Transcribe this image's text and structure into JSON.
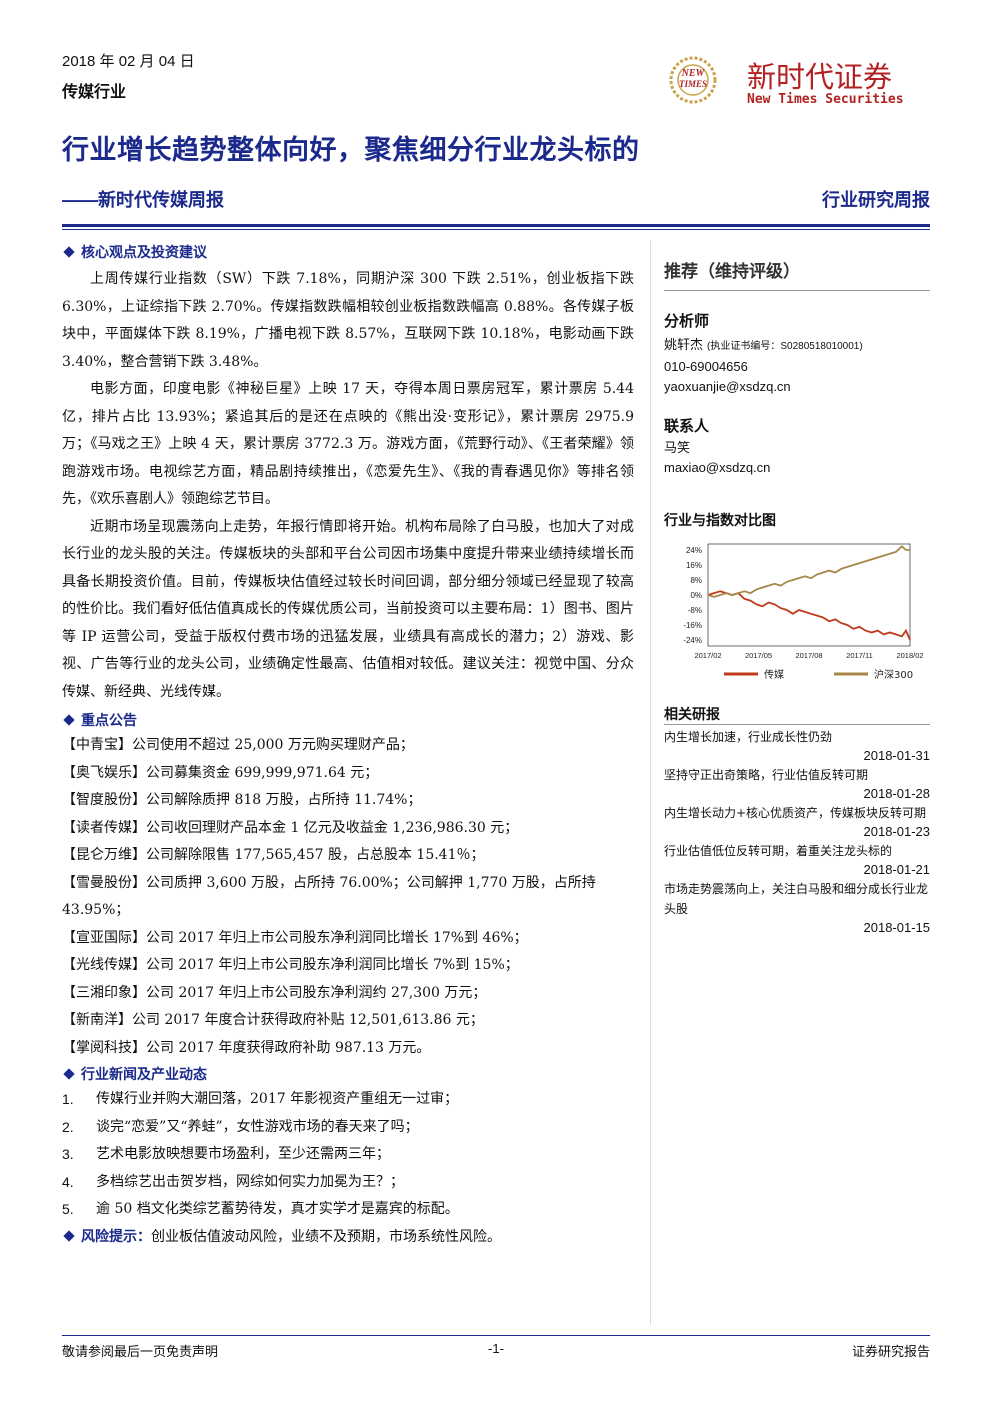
{
  "header": {
    "date": "2018 年 02 月 04 日",
    "sector": "传媒行业",
    "logo_cn": "新时代证券",
    "logo_en": "New Times Securities",
    "logo_mark_top": "NEW",
    "logo_mark_bottom": "TIMES",
    "title": "行业增长趋势整体向好，聚焦细分行业龙头标的",
    "subtitle": "——新时代传媒周报",
    "doc_type": "行业研究周报",
    "brand_color": "#1b2a8c"
  },
  "core": {
    "heading": "核心观点及投资建议",
    "paragraphs": [
      "上周传媒行业指数（SW）下跌 7.18%，同期沪深 300 下跌 2.51%，创业板指下跌 6.30%，上证综指下跌 2.70%。传媒指数跌幅相较创业板指数跌幅高 0.88%。各传媒子板块中，平面媒体下跌 8.19%，广播电视下跌 8.57%，互联网下跌 10.18%，电影动画下跌 3.40%，整合营销下跌 3.48%。",
      "电影方面，印度电影《神秘巨星》上映 17 天，夺得本周日票房冠军，累计票房 5.44 亿，排片占比 13.93%；紧追其后的是还在点映的《熊出没·变形记》，累计票房 2975.9 万；《马戏之王》上映 4 天，累计票房 3772.3 万。游戏方面，《荒野行动》、《王者荣耀》领跑游戏市场。电视综艺方面，精品剧持续推出，《恋爱先生》、《我的青春遇见你》等排名领先，《欢乐喜剧人》领跑综艺节目。",
      "近期市场呈现震荡向上走势，年报行情即将开始。机构布局除了白马股，也加大了对成长行业的龙头股的关注。传媒板块的头部和平台公司因市场集中度提升带来业绩持续增长而具备长期投资价值。目前，传媒板块估值经过较长时间回调，部分细分领域已经显现了较高的性价比。我们看好低估值真成长的传媒优质公司，当前投资可以主要布局：1）图书、图片等 IP 运营公司，受益于版权付费市场的迅猛发展，业绩具有高成长的潜力；2）游戏、影视、广告等行业的龙头公司，业绩确定性最高、估值相对较低。建议关注：视觉中国、分众传媒、新经典、光线传媒。"
    ]
  },
  "announcements": {
    "heading": "重点公告",
    "items": [
      "【中青宝】公司使用不超过 25,000 万元购买理财产品；",
      "【奥飞娱乐】公司募集资金 699,999,971.64 元；",
      "【智度股份】公司解除质押 818 万股，占所持 11.74%；",
      "【读者传媒】公司收回理财产品本金 1 亿元及收益金 1,236,986.30 元；",
      "【昆仑万维】公司解除限售 177,565,457 股，占总股本 15.41％；",
      "【雪曼股份】公司质押 3,600 万股，占所持 76.00%；公司解押 1,770 万股，占所持 43.95%；",
      "【宣亚国际】公司 2017 年归上市公司股东净利润同比增长 17%到 46%；",
      "【光线传媒】公司 2017 年归上市公司股东净利润同比增长 7%到 15%；",
      "【三湘印象】公司 2017 年归上市公司股东净利润约 27,300 万元；",
      "【新南洋】公司 2017 年度合计获得政府补贴 12,501,613.86 元；",
      "【掌阅科技】公司 2017 年度获得政府补助 987.13 万元。"
    ]
  },
  "news": {
    "heading": "行业新闻及产业动态",
    "items": [
      {
        "num": "1.",
        "text": "传媒行业并购大潮回落，2017 年影视资产重组无一过审；"
      },
      {
        "num": "2.",
        "text": "谈完“恋爱”又“养蛙”，女性游戏市场的春天来了吗；"
      },
      {
        "num": "3.",
        "text": "艺术电影放映想要市场盈利，至少还需两三年；"
      },
      {
        "num": "4.",
        "text": "多档综艺出击贺岁档，网综如何实力加冕为王？；"
      },
      {
        "num": "5.",
        "text": "逾 50 档文化类综艺蓄势待发，真才实学才是嘉宾的标配。"
      }
    ]
  },
  "risk": {
    "label": "风险提示：",
    "text": "创业板估值波动风险，业绩不及预期，市场系统性风险。"
  },
  "sidebar": {
    "rating": "推荐（维持评级）",
    "analyst_label": "分析师",
    "analyst_name": "姚轩杰",
    "analyst_cert": "(执业证书编号：S0280518010001)",
    "analyst_phone": "010-69004656",
    "analyst_email": "yaoxuanjie@xsdzq.cn",
    "contact_label": "联系人",
    "contact_name": "马笑",
    "contact_email": "maxiao@xsdzq.cn",
    "chart_title": "行业与指数对比图",
    "research_label": "相关研报",
    "research": [
      {
        "title": "内生增长加速，行业成长性仍劲",
        "date": "2018-01-31"
      },
      {
        "title": "坚持守正出奇策略，行业估值反转可期",
        "date": "2018-01-28"
      },
      {
        "title": "内生增长动力+核心优质资产，传媒板块反转可期",
        "date": "2018-01-23"
      },
      {
        "title": "行业估值低位反转可期，着重关注龙头标的",
        "date": "2018-01-21"
      },
      {
        "title": "市场走势震荡向上，关注白马股和细分成长行业龙头股",
        "date": "2018-01-15"
      }
    ]
  },
  "chart_data": {
    "type": "line",
    "title": "行业与指数对比图",
    "x_ticks": [
      "2017/02",
      "2017/05",
      "2017/08",
      "2017/11",
      "2018/02"
    ],
    "y_ticks": [
      "24%",
      "16%",
      "8%",
      "0%",
      "-8%",
      "-16%",
      "-24%"
    ],
    "ylim": [
      -24,
      24
    ],
    "xlabel": "",
    "ylabel": "",
    "legend_position": "bottom",
    "series": [
      {
        "name": "传媒",
        "color": "#c0391b",
        "x": [
          0,
          0.03,
          0.06,
          0.09,
          0.12,
          0.15,
          0.18,
          0.21,
          0.24,
          0.27,
          0.3,
          0.33,
          0.36,
          0.39,
          0.42,
          0.45,
          0.48,
          0.51,
          0.54,
          0.57,
          0.6,
          0.63,
          0.66,
          0.69,
          0.72,
          0.75,
          0.78,
          0.81,
          0.84,
          0.87,
          0.9,
          0.93,
          0.96,
          0.98,
          1.0
        ],
        "values": [
          0,
          1,
          2,
          1,
          0,
          1,
          -2,
          -3,
          -5,
          -6,
          -4,
          -5,
          -7,
          -8,
          -10,
          -8,
          -9,
          -10,
          -11,
          -12,
          -14,
          -13,
          -15,
          -16,
          -18,
          -17,
          -19,
          -20,
          -19,
          -21,
          -20,
          -21,
          -22,
          -19,
          -24
        ]
      },
      {
        "name": "沪深300",
        "color": "#a8864a",
        "x": [
          0,
          0.03,
          0.06,
          0.09,
          0.12,
          0.15,
          0.18,
          0.21,
          0.24,
          0.27,
          0.3,
          0.33,
          0.36,
          0.39,
          0.42,
          0.45,
          0.48,
          0.51,
          0.54,
          0.57,
          0.6,
          0.63,
          0.66,
          0.69,
          0.72,
          0.75,
          0.78,
          0.81,
          0.84,
          0.87,
          0.9,
          0.93,
          0.96,
          0.98,
          1.0
        ],
        "values": [
          0,
          -1,
          0,
          1,
          0,
          1,
          2,
          1,
          3,
          4,
          5,
          6,
          5,
          7,
          8,
          9,
          10,
          9,
          11,
          12,
          13,
          12,
          14,
          15,
          16,
          17,
          18,
          19,
          20,
          21,
          22,
          23,
          26,
          24,
          24
        ]
      }
    ]
  },
  "footer": {
    "left": "敬请参阅最后一页免责声明",
    "center": "-1-",
    "right": "证券研究报告"
  }
}
